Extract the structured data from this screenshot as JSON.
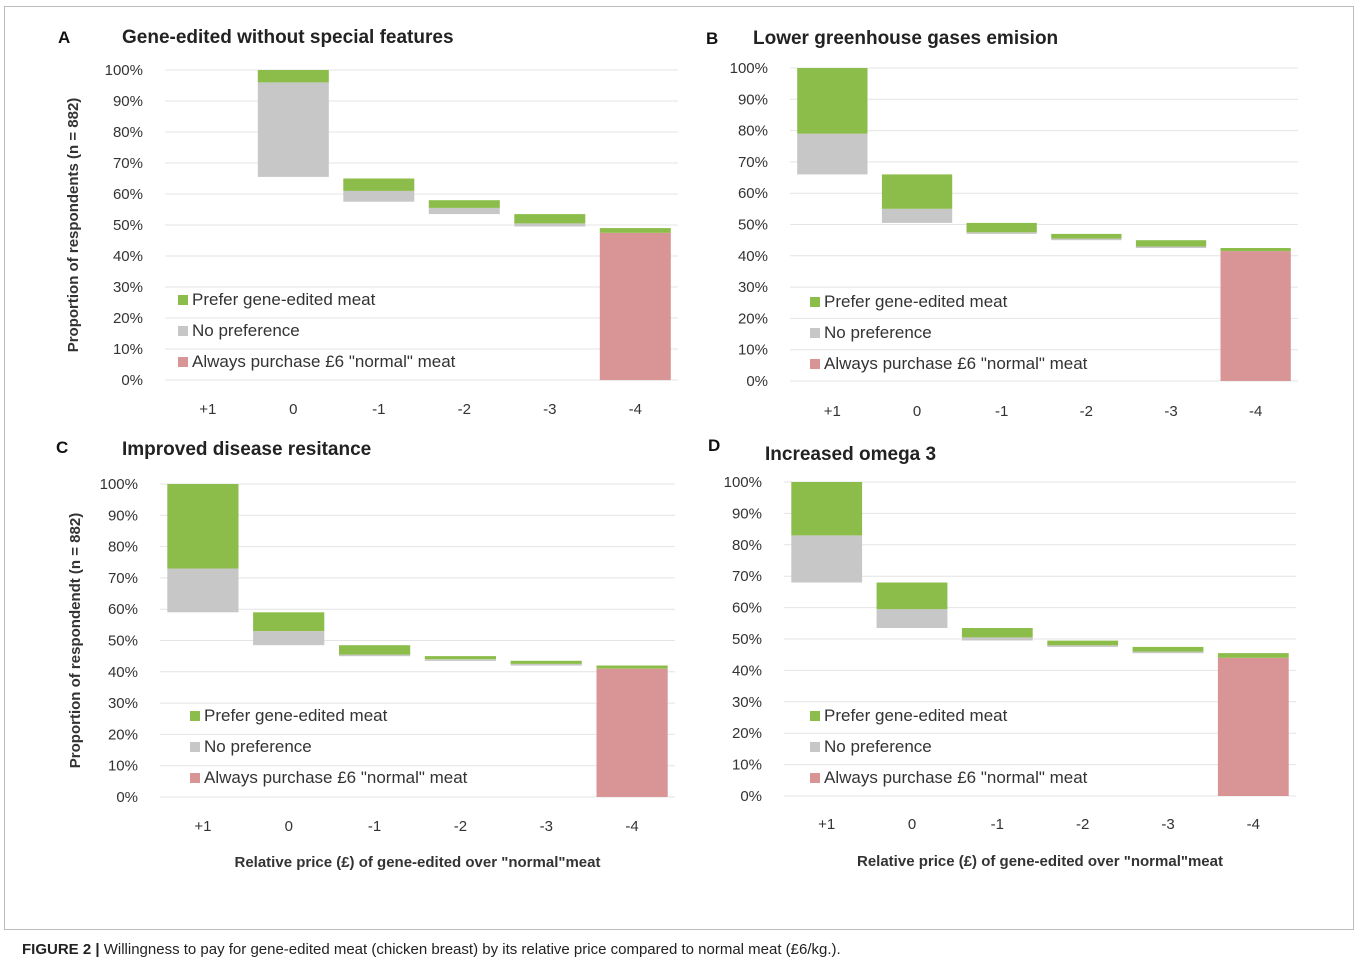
{
  "figure": {
    "caption_label": "FIGURE 2 |",
    "caption_text": " Willingness to pay for gene-edited meat (chicken breast) by its relative price compared to normal meat (£6/kg.)."
  },
  "colors": {
    "prefer": "#8cbd4a",
    "no_preference": "#c7c7c7",
    "always_normal": "#d99495",
    "grid": "#e4e4e4"
  },
  "legend": [
    {
      "key": "prefer",
      "label": "Prefer gene-edited meat"
    },
    {
      "key": "no_preference",
      "label": "No preference"
    },
    {
      "key": "always_normal",
      "label": "Always purchase £6 \"normal\" meat"
    }
  ],
  "chart_data": [
    {
      "type": "bar",
      "panel": "A",
      "title": "Gene-edited without special features",
      "ylabel": "Proportion of respondents (n = 882)",
      "xlabel": "",
      "ylim": [
        0,
        100
      ],
      "yticks": [
        "0%",
        "10%",
        "20%",
        "30%",
        "40%",
        "50%",
        "60%",
        "70%",
        "80%",
        "90%",
        "100%"
      ],
      "categories": [
        "+1",
        "0",
        "-1",
        "-2",
        "-3",
        "-4"
      ],
      "legend_position": "bottom-left",
      "grid": true,
      "segments": [
        {
          "category": "0",
          "series": "no_preference",
          "bottom": 65.5,
          "top": 96
        },
        {
          "category": "0",
          "series": "prefer",
          "bottom": 96,
          "top": 100
        },
        {
          "category": "-1",
          "series": "no_preference",
          "bottom": 57.5,
          "top": 61
        },
        {
          "category": "-1",
          "series": "prefer",
          "bottom": 61,
          "top": 65
        },
        {
          "category": "-2",
          "series": "no_preference",
          "bottom": 53.5,
          "top": 55.5
        },
        {
          "category": "-2",
          "series": "prefer",
          "bottom": 55.5,
          "top": 58
        },
        {
          "category": "-3",
          "series": "no_preference",
          "bottom": 49.5,
          "top": 50.5
        },
        {
          "category": "-3",
          "series": "prefer",
          "bottom": 50.5,
          "top": 53.5
        },
        {
          "category": "-4",
          "series": "always_normal",
          "bottom": 0,
          "top": 47.5
        },
        {
          "category": "-4",
          "series": "prefer",
          "bottom": 47.5,
          "top": 49
        }
      ]
    },
    {
      "type": "bar",
      "panel": "B",
      "title": "Lower greenhouse gases emision",
      "ylabel": "",
      "xlabel": "",
      "ylim": [
        0,
        100
      ],
      "yticks": [
        "0%",
        "10%",
        "20%",
        "30%",
        "40%",
        "50%",
        "60%",
        "70%",
        "80%",
        "90%",
        "100%"
      ],
      "categories": [
        "+1",
        "0",
        "-1",
        "-2",
        "-3",
        "-4"
      ],
      "legend_position": "bottom-left",
      "grid": true,
      "segments": [
        {
          "category": "+1",
          "series": "no_preference",
          "bottom": 66,
          "top": 79
        },
        {
          "category": "+1",
          "series": "prefer",
          "bottom": 79,
          "top": 100
        },
        {
          "category": "0",
          "series": "no_preference",
          "bottom": 50.5,
          "top": 55
        },
        {
          "category": "0",
          "series": "prefer",
          "bottom": 55,
          "top": 66
        },
        {
          "category": "-1",
          "series": "no_preference",
          "bottom": 47,
          "top": 47.5
        },
        {
          "category": "-1",
          "series": "prefer",
          "bottom": 47.5,
          "top": 50.5
        },
        {
          "category": "-2",
          "series": "no_preference",
          "bottom": 45,
          "top": 45.5
        },
        {
          "category": "-2",
          "series": "prefer",
          "bottom": 45.5,
          "top": 47
        },
        {
          "category": "-3",
          "series": "no_preference",
          "bottom": 42.5,
          "top": 43
        },
        {
          "category": "-3",
          "series": "prefer",
          "bottom": 43,
          "top": 45
        },
        {
          "category": "-4",
          "series": "always_normal",
          "bottom": 0,
          "top": 41.5
        },
        {
          "category": "-4",
          "series": "prefer",
          "bottom": 41.5,
          "top": 42.5
        }
      ]
    },
    {
      "type": "bar",
      "panel": "C",
      "title": "Improved disease resitance",
      "ylabel": "Proportion of respondendt (n = 882)",
      "xlabel": "Relative price (£) of gene-edited  over \"normal\"meat",
      "ylim": [
        0,
        100
      ],
      "yticks": [
        "0%",
        "10%",
        "20%",
        "30%",
        "40%",
        "50%",
        "60%",
        "70%",
        "80%",
        "90%",
        "100%"
      ],
      "categories": [
        "+1",
        "0",
        "-1",
        "-2",
        "-3",
        "-4"
      ],
      "legend_position": "bottom-left",
      "grid": true,
      "segments": [
        {
          "category": "+1",
          "series": "no_preference",
          "bottom": 59,
          "top": 73
        },
        {
          "category": "+1",
          "series": "prefer",
          "bottom": 73,
          "top": 100
        },
        {
          "category": "0",
          "series": "no_preference",
          "bottom": 48.5,
          "top": 53
        },
        {
          "category": "0",
          "series": "prefer",
          "bottom": 53,
          "top": 59
        },
        {
          "category": "-1",
          "series": "no_preference",
          "bottom": 45,
          "top": 45.5
        },
        {
          "category": "-1",
          "series": "prefer",
          "bottom": 45.5,
          "top": 48.5
        },
        {
          "category": "-2",
          "series": "no_preference",
          "bottom": 43.5,
          "top": 44
        },
        {
          "category": "-2",
          "series": "prefer",
          "bottom": 44,
          "top": 45
        },
        {
          "category": "-3",
          "series": "no_preference",
          "bottom": 42,
          "top": 42.5
        },
        {
          "category": "-3",
          "series": "prefer",
          "bottom": 42.5,
          "top": 43.5
        },
        {
          "category": "-4",
          "series": "always_normal",
          "bottom": 0,
          "top": 41
        },
        {
          "category": "-4",
          "series": "prefer",
          "bottom": 41,
          "top": 42
        }
      ]
    },
    {
      "type": "bar",
      "panel": "D",
      "title": "Increased omega 3",
      "ylabel": "",
      "xlabel": "Relative price (£) of gene-edited over \"normal\"meat",
      "ylim": [
        0,
        100
      ],
      "yticks": [
        "0%",
        "10%",
        "20%",
        "30%",
        "40%",
        "50%",
        "60%",
        "70%",
        "80%",
        "90%",
        "100%"
      ],
      "categories": [
        "+1",
        "0",
        "-1",
        "-2",
        "-3",
        "-4"
      ],
      "legend_position": "bottom-left",
      "grid": true,
      "segments": [
        {
          "category": "+1",
          "series": "no_preference",
          "bottom": 68,
          "top": 83
        },
        {
          "category": "+1",
          "series": "prefer",
          "bottom": 83,
          "top": 100
        },
        {
          "category": "0",
          "series": "no_preference",
          "bottom": 53.5,
          "top": 59.5
        },
        {
          "category": "0",
          "series": "prefer",
          "bottom": 59.5,
          "top": 68
        },
        {
          "category": "-1",
          "series": "no_preference",
          "bottom": 49.5,
          "top": 50.5
        },
        {
          "category": "-1",
          "series": "prefer",
          "bottom": 50.5,
          "top": 53.5
        },
        {
          "category": "-2",
          "series": "no_preference",
          "bottom": 47.5,
          "top": 48
        },
        {
          "category": "-2",
          "series": "prefer",
          "bottom": 48,
          "top": 49.5
        },
        {
          "category": "-3",
          "series": "no_preference",
          "bottom": 45.5,
          "top": 46
        },
        {
          "category": "-3",
          "series": "prefer",
          "bottom": 46,
          "top": 47.5
        },
        {
          "category": "-4",
          "series": "always_normal",
          "bottom": 0,
          "top": 44
        },
        {
          "category": "-4",
          "series": "prefer",
          "bottom": 44,
          "top": 45.5
        }
      ]
    }
  ]
}
